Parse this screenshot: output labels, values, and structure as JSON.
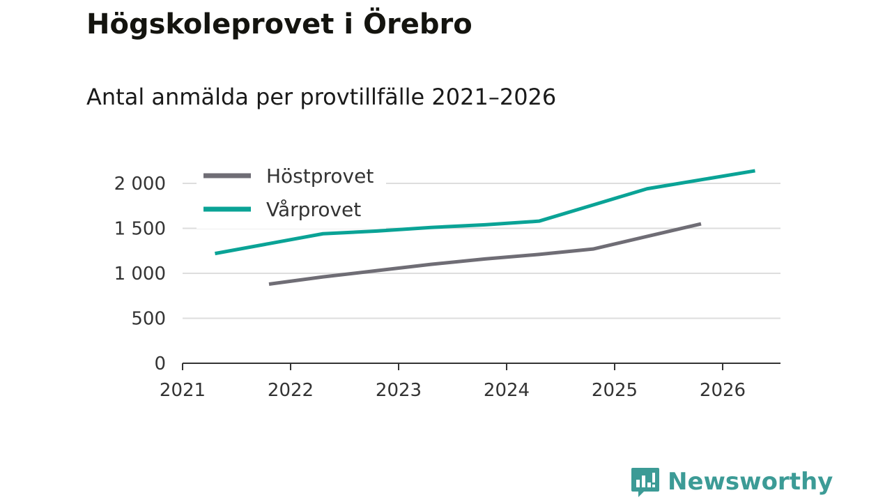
{
  "header": {
    "title": "Högskoleprovet i Örebro",
    "subtitle": "Antal anmälda per provtillfälle 2021–2026"
  },
  "brand": {
    "name": "Newsworthy",
    "color": "#3c9b96"
  },
  "chart_data": {
    "type": "line",
    "title": "Högskoleprovet i Örebro",
    "subtitle": "Antal anmälda per provtillfälle 2021–2026",
    "xlabel": "",
    "ylabel": "",
    "xlim": [
      2021,
      2026.5
    ],
    "ylim": [
      0,
      2000
    ],
    "x_ticks": [
      2021,
      2022,
      2023,
      2024,
      2025,
      2026
    ],
    "y_ticks": [
      {
        "value": 0,
        "label": "0"
      },
      {
        "value": 500,
        "label": "500"
      },
      {
        "value": 1000,
        "label": "1 000"
      },
      {
        "value": 1500,
        "label": "1 500"
      },
      {
        "value": 2000,
        "label": "2 000"
      }
    ],
    "grid": true,
    "legend_position": "top-left",
    "series": [
      {
        "name": "Höstprovet",
        "color": "#6f6d75",
        "x": [
          2021.8,
          2022.3,
          2022.8,
          2023.3,
          2023.8,
          2024.3,
          2024.8,
          2025.3,
          2025.8
        ],
        "y": [
          880,
          960,
          1030,
          1100,
          1160,
          1210,
          1270,
          1410,
          1550
        ]
      },
      {
        "name": "Vårprovet",
        "color": "#0aa396",
        "x": [
          2021.3,
          2021.8,
          2022.3,
          2022.8,
          2023.3,
          2023.8,
          2024.3,
          2024.8,
          2025.3,
          2025.8,
          2026.3
        ],
        "y": [
          1220,
          1330,
          1440,
          1470,
          1510,
          1540,
          1580,
          1760,
          1940,
          2040,
          2140
        ]
      }
    ]
  }
}
